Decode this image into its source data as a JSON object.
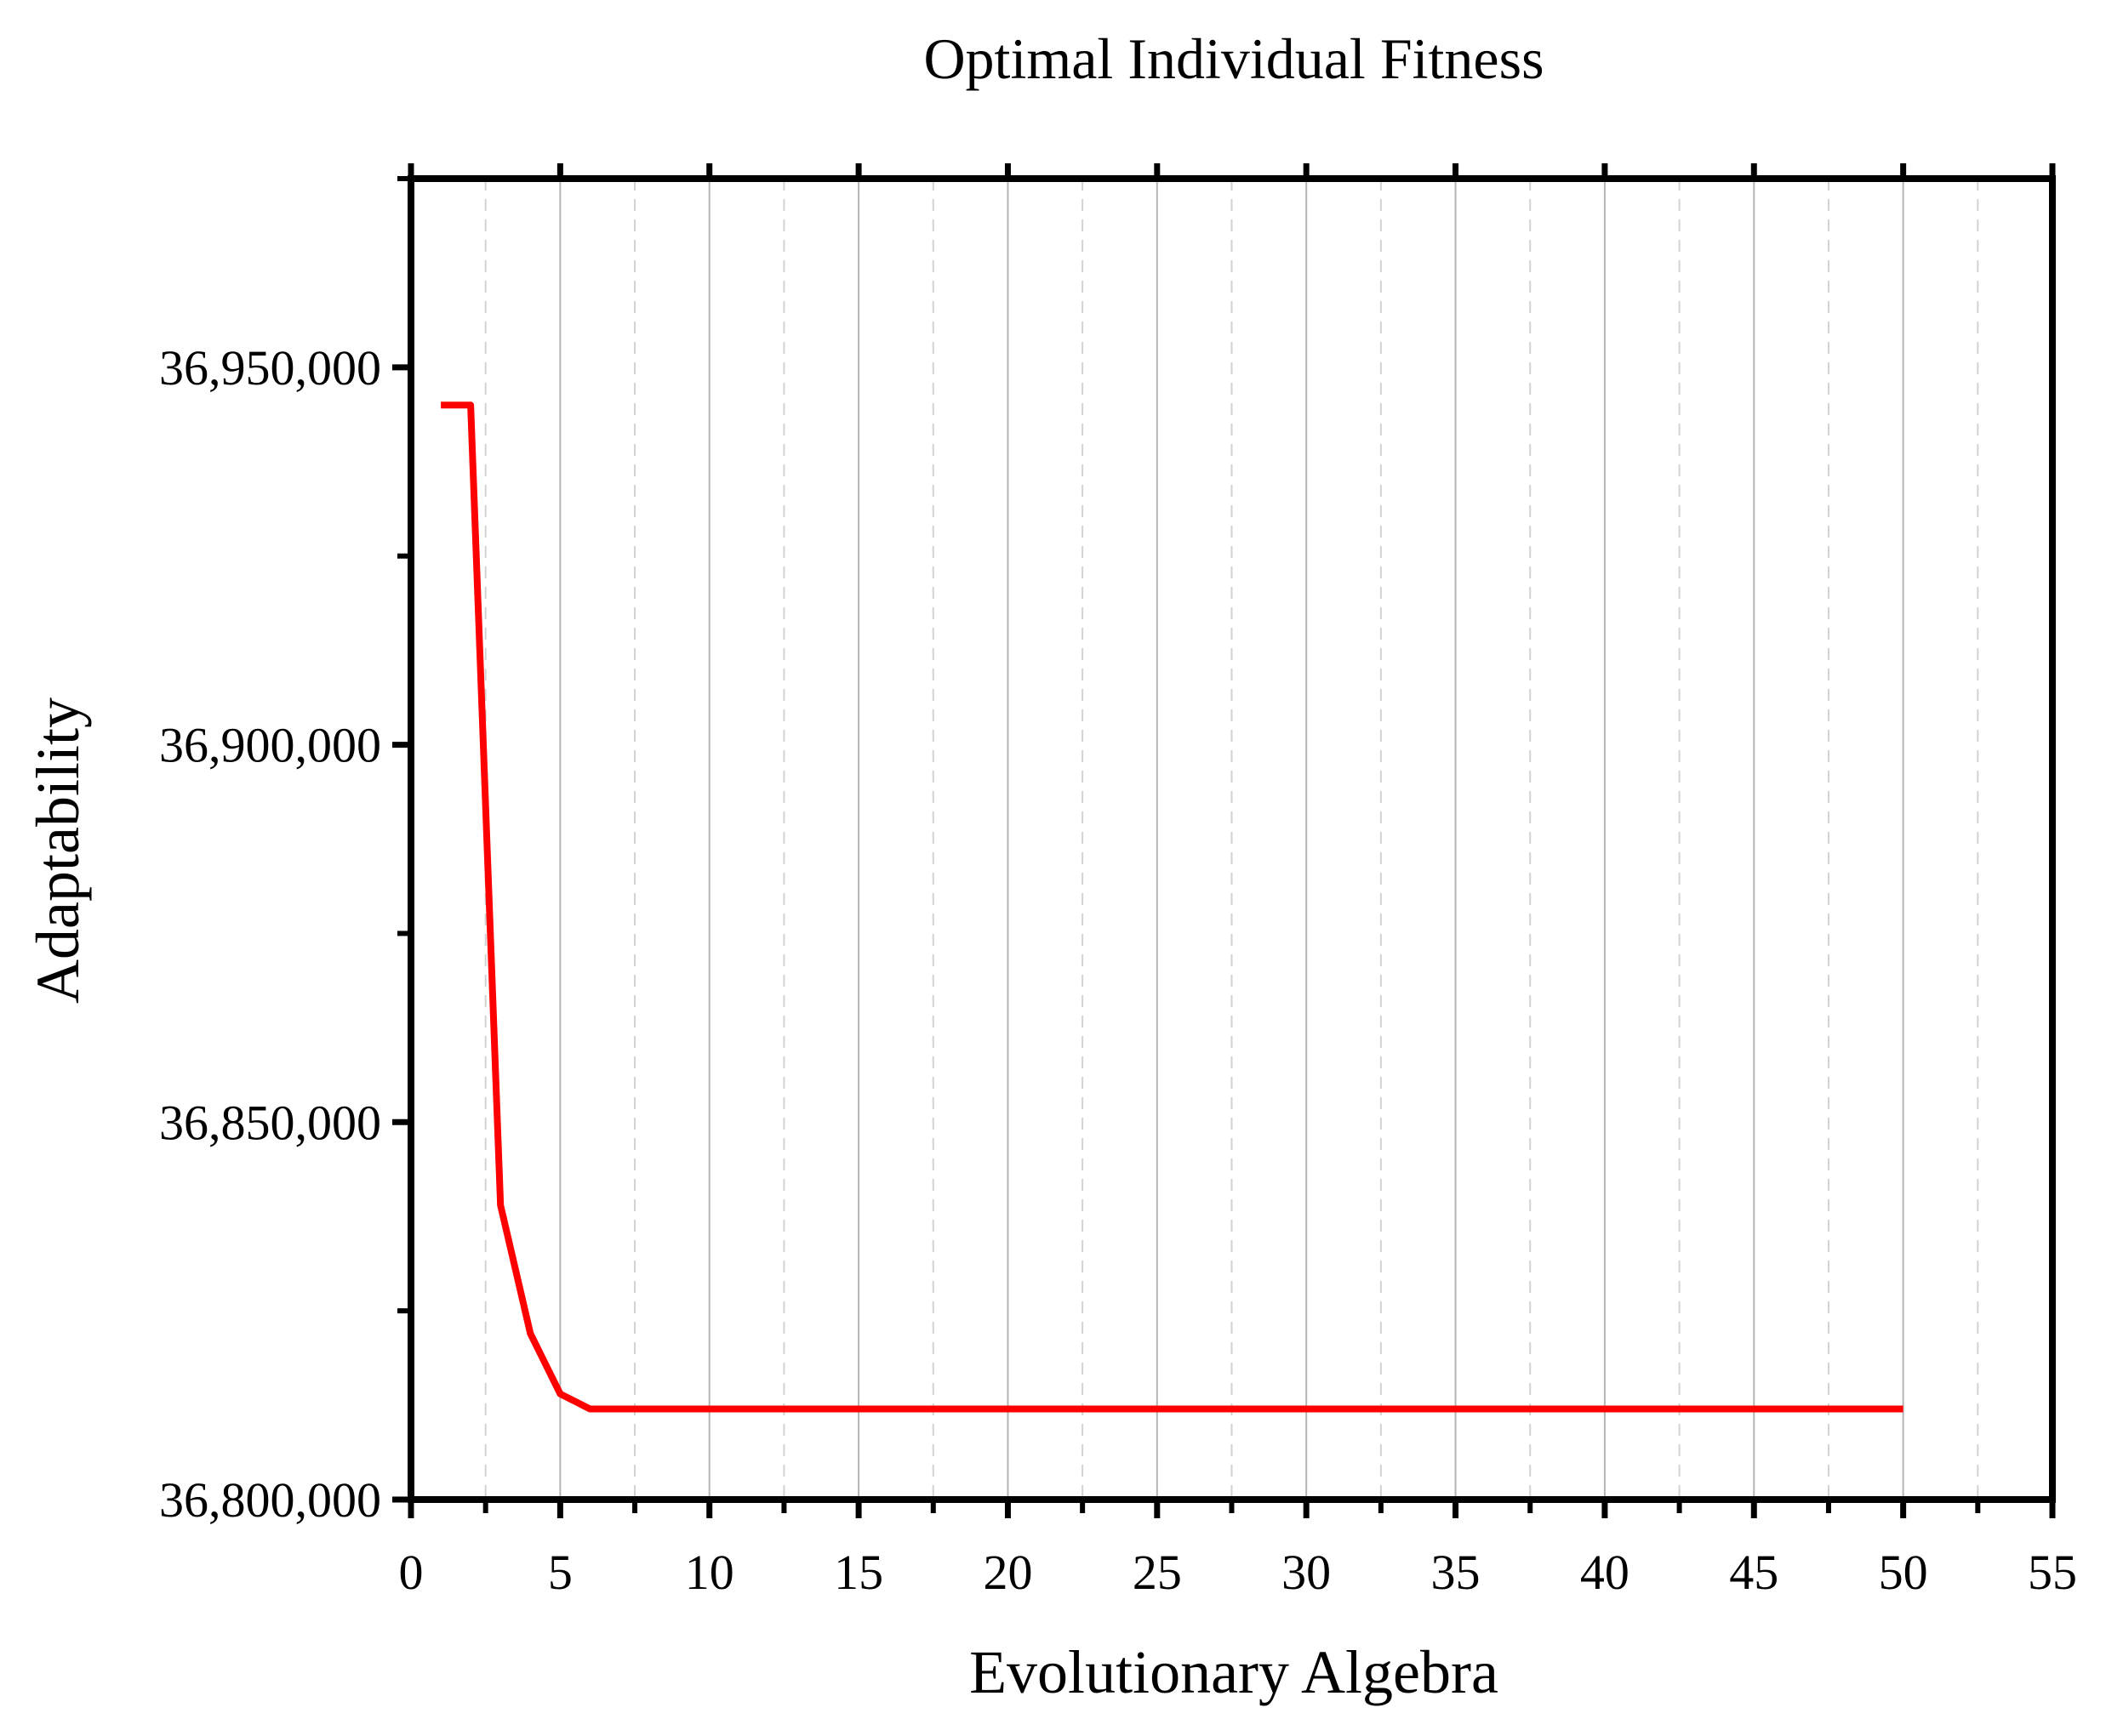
{
  "chart_data": {
    "type": "line",
    "title": "Optimal Individual Fitness",
    "xlabel": "Evolutionary Algebra",
    "ylabel": "Adaptability",
    "xlim": [
      0,
      55
    ],
    "ylim": [
      36800000,
      36975000
    ],
    "x_ticks": [
      0,
      5,
      10,
      15,
      20,
      25,
      30,
      35,
      40,
      45,
      50,
      55
    ],
    "x_tick_labels": [
      "0",
      "5",
      "10",
      "15",
      "20",
      "25",
      "30",
      "35",
      "40",
      "45",
      "50",
      "55"
    ],
    "y_ticks": [
      36800000,
      36850000,
      36900000,
      36950000
    ],
    "y_tick_labels": [
      "36,800,000",
      "36,850,000",
      "36,900,000",
      "36,950,000"
    ],
    "grid": "vertical",
    "series": [
      {
        "color": "#ff0000",
        "x": [
          1,
          2,
          3,
          4,
          5,
          6,
          7,
          8,
          9,
          10,
          11,
          12,
          13,
          14,
          15,
          16,
          17,
          18,
          19,
          20,
          21,
          22,
          23,
          24,
          25,
          26,
          27,
          28,
          29,
          30,
          31,
          32,
          33,
          34,
          35,
          36,
          37,
          38,
          39,
          40,
          41,
          42,
          43,
          44,
          45,
          46,
          47,
          48,
          49,
          50
        ],
        "y": [
          36945000,
          36945000,
          36839000,
          36822000,
          36814000,
          36812000,
          36812000,
          36812000,
          36812000,
          36812000,
          36812000,
          36812000,
          36812000,
          36812000,
          36812000,
          36812000,
          36812000,
          36812000,
          36812000,
          36812000,
          36812000,
          36812000,
          36812000,
          36812000,
          36812000,
          36812000,
          36812000,
          36812000,
          36812000,
          36812000,
          36812000,
          36812000,
          36812000,
          36812000,
          36812000,
          36812000,
          36812000,
          36812000,
          36812000,
          36812000,
          36812000,
          36812000,
          36812000,
          36812000,
          36812000,
          36812000,
          36812000,
          36812000,
          36812000,
          36812000
        ]
      }
    ]
  }
}
